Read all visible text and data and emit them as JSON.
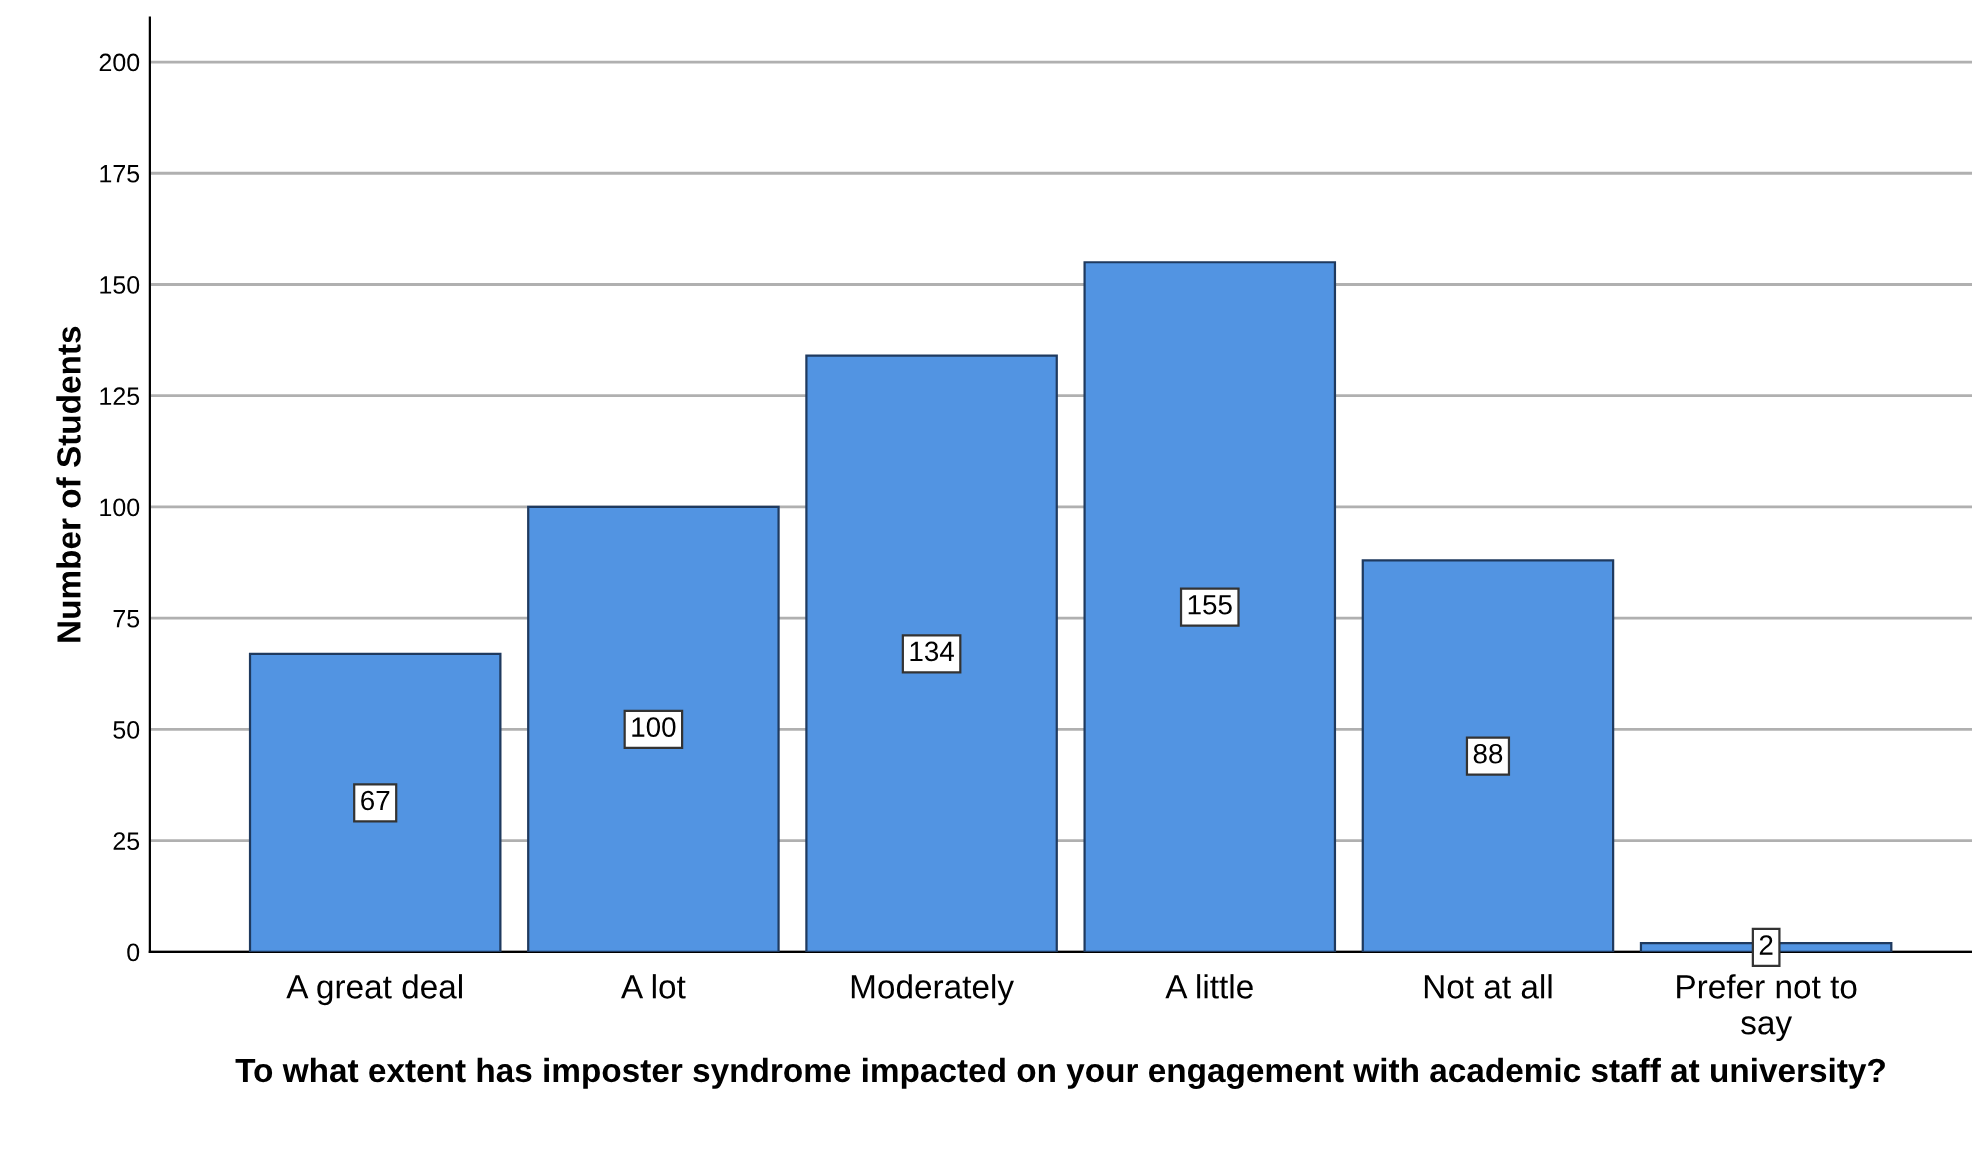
{
  "chart_data": {
    "type": "bar",
    "xlabel": "To what extent has imposter syndrome impacted on your engagement with academic staff at university?",
    "ylabel": "Number of Students",
    "categories": [
      "A great deal",
      "A lot",
      "Moderately",
      "A little",
      "Not at all",
      "Prefer not to\nsay"
    ],
    "values": [
      67,
      100,
      134,
      155,
      88,
      2
    ],
    "color": "#5294e2",
    "ylim": [
      0,
      210
    ],
    "yticks": [
      0,
      25,
      50,
      75,
      100,
      125,
      150,
      175,
      200
    ],
    "grid": "y",
    "data_labels": true
  }
}
